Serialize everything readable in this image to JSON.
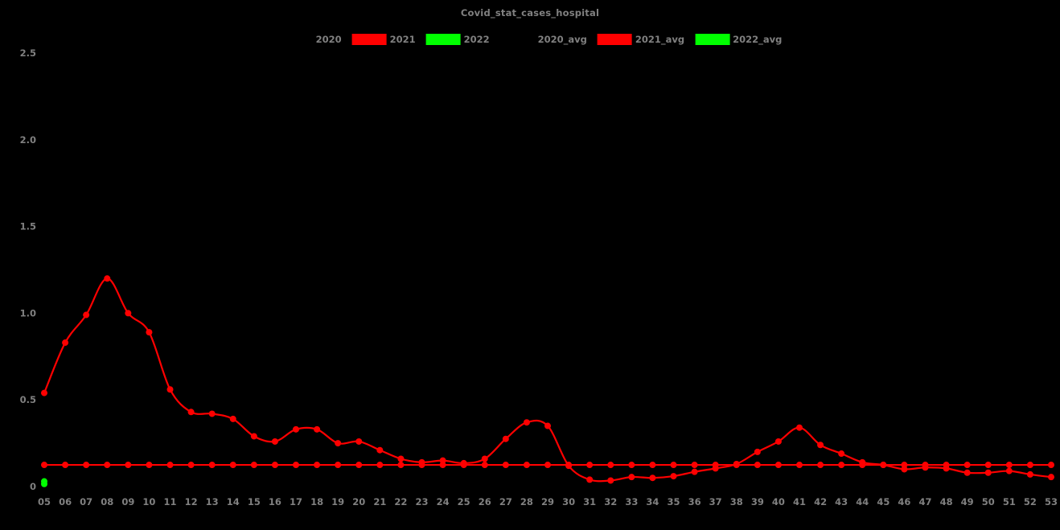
{
  "page": {
    "background": "#000000"
  },
  "header": {
    "title": "Covid_stat_cases_hospital"
  },
  "legend": {
    "position": "top-center",
    "items": [
      {
        "label": "2020",
        "color": "#000000"
      },
      {
        "label": "2021",
        "color": "#ff0000"
      },
      {
        "label": "2022",
        "color": "#00ff00"
      },
      {
        "label": "2020_avg",
        "color": "#000000"
      },
      {
        "label": "2021_avg",
        "color": "#ff0000"
      },
      {
        "label": "2022_avg",
        "color": "#00ff00"
      }
    ]
  },
  "chart_data": {
    "type": "line",
    "title": "Covid_stat_cases_hospital",
    "background": "#000000",
    "grid": false,
    "legend_position": "top",
    "xlabel": "",
    "ylabel": "",
    "xlim": [
      5,
      53
    ],
    "ylim": [
      0,
      2.6
    ],
    "x_axis": {
      "tick_labels": [
        "05",
        "06",
        "07",
        "08",
        "09",
        "10",
        "11",
        "12",
        "13",
        "14",
        "15",
        "16",
        "17",
        "18",
        "19",
        "20",
        "21",
        "22",
        "23",
        "24",
        "25",
        "26",
        "27",
        "28",
        "29",
        "30",
        "31",
        "32",
        "33",
        "34",
        "35",
        "36",
        "37",
        "38",
        "39",
        "40",
        "41",
        "42",
        "43",
        "44",
        "45",
        "46",
        "47",
        "48",
        "49",
        "50",
        "51",
        "52",
        "53"
      ]
    },
    "y_axis": {
      "ticks": [
        {
          "label": "0",
          "value": 0
        },
        {
          "label": "0.5",
          "value": 0.5
        },
        {
          "label": "1.0",
          "value": 1.0
        },
        {
          "label": "1.5",
          "value": 1.5
        },
        {
          "label": "2.0",
          "value": 2.0
        },
        {
          "label": "2.5",
          "value": 2.5
        }
      ]
    },
    "series": [
      {
        "name": "2020",
        "color": "#000000",
        "x_from": 5,
        "values": []
      },
      {
        "name": "2021",
        "color": "#ff0000",
        "x_from": 5,
        "values": [
          0.54,
          0.83,
          0.99,
          1.2,
          1.0,
          0.89,
          0.56,
          0.43,
          0.42,
          0.39,
          0.29,
          0.26,
          0.33,
          0.33,
          0.25,
          0.26,
          0.21,
          0.16,
          0.14,
          0.15,
          0.135,
          0.16,
          0.275,
          0.37,
          0.35,
          0.12,
          0.04,
          0.035,
          0.055,
          0.05,
          0.06,
          0.085,
          0.105,
          0.13,
          0.2,
          0.26,
          0.34,
          0.24,
          0.19,
          0.14,
          0.125,
          0.1,
          0.11,
          0.105,
          0.08,
          0.08,
          0.09,
          0.07,
          0.055
        ]
      },
      {
        "name": "2022",
        "color": "#00ff00",
        "x_from": 5,
        "values": [
          0.03
        ]
      },
      {
        "name": "2020_avg",
        "color": "#000000",
        "x_from": 5,
        "values": []
      },
      {
        "name": "2021_avg",
        "color": "#ff0000",
        "x_from": 5,
        "x_to": 53,
        "constant": 0.125
      },
      {
        "name": "2022_avg",
        "color": "#00ff00",
        "x_from": 5,
        "values": [
          0.015
        ]
      }
    ]
  }
}
